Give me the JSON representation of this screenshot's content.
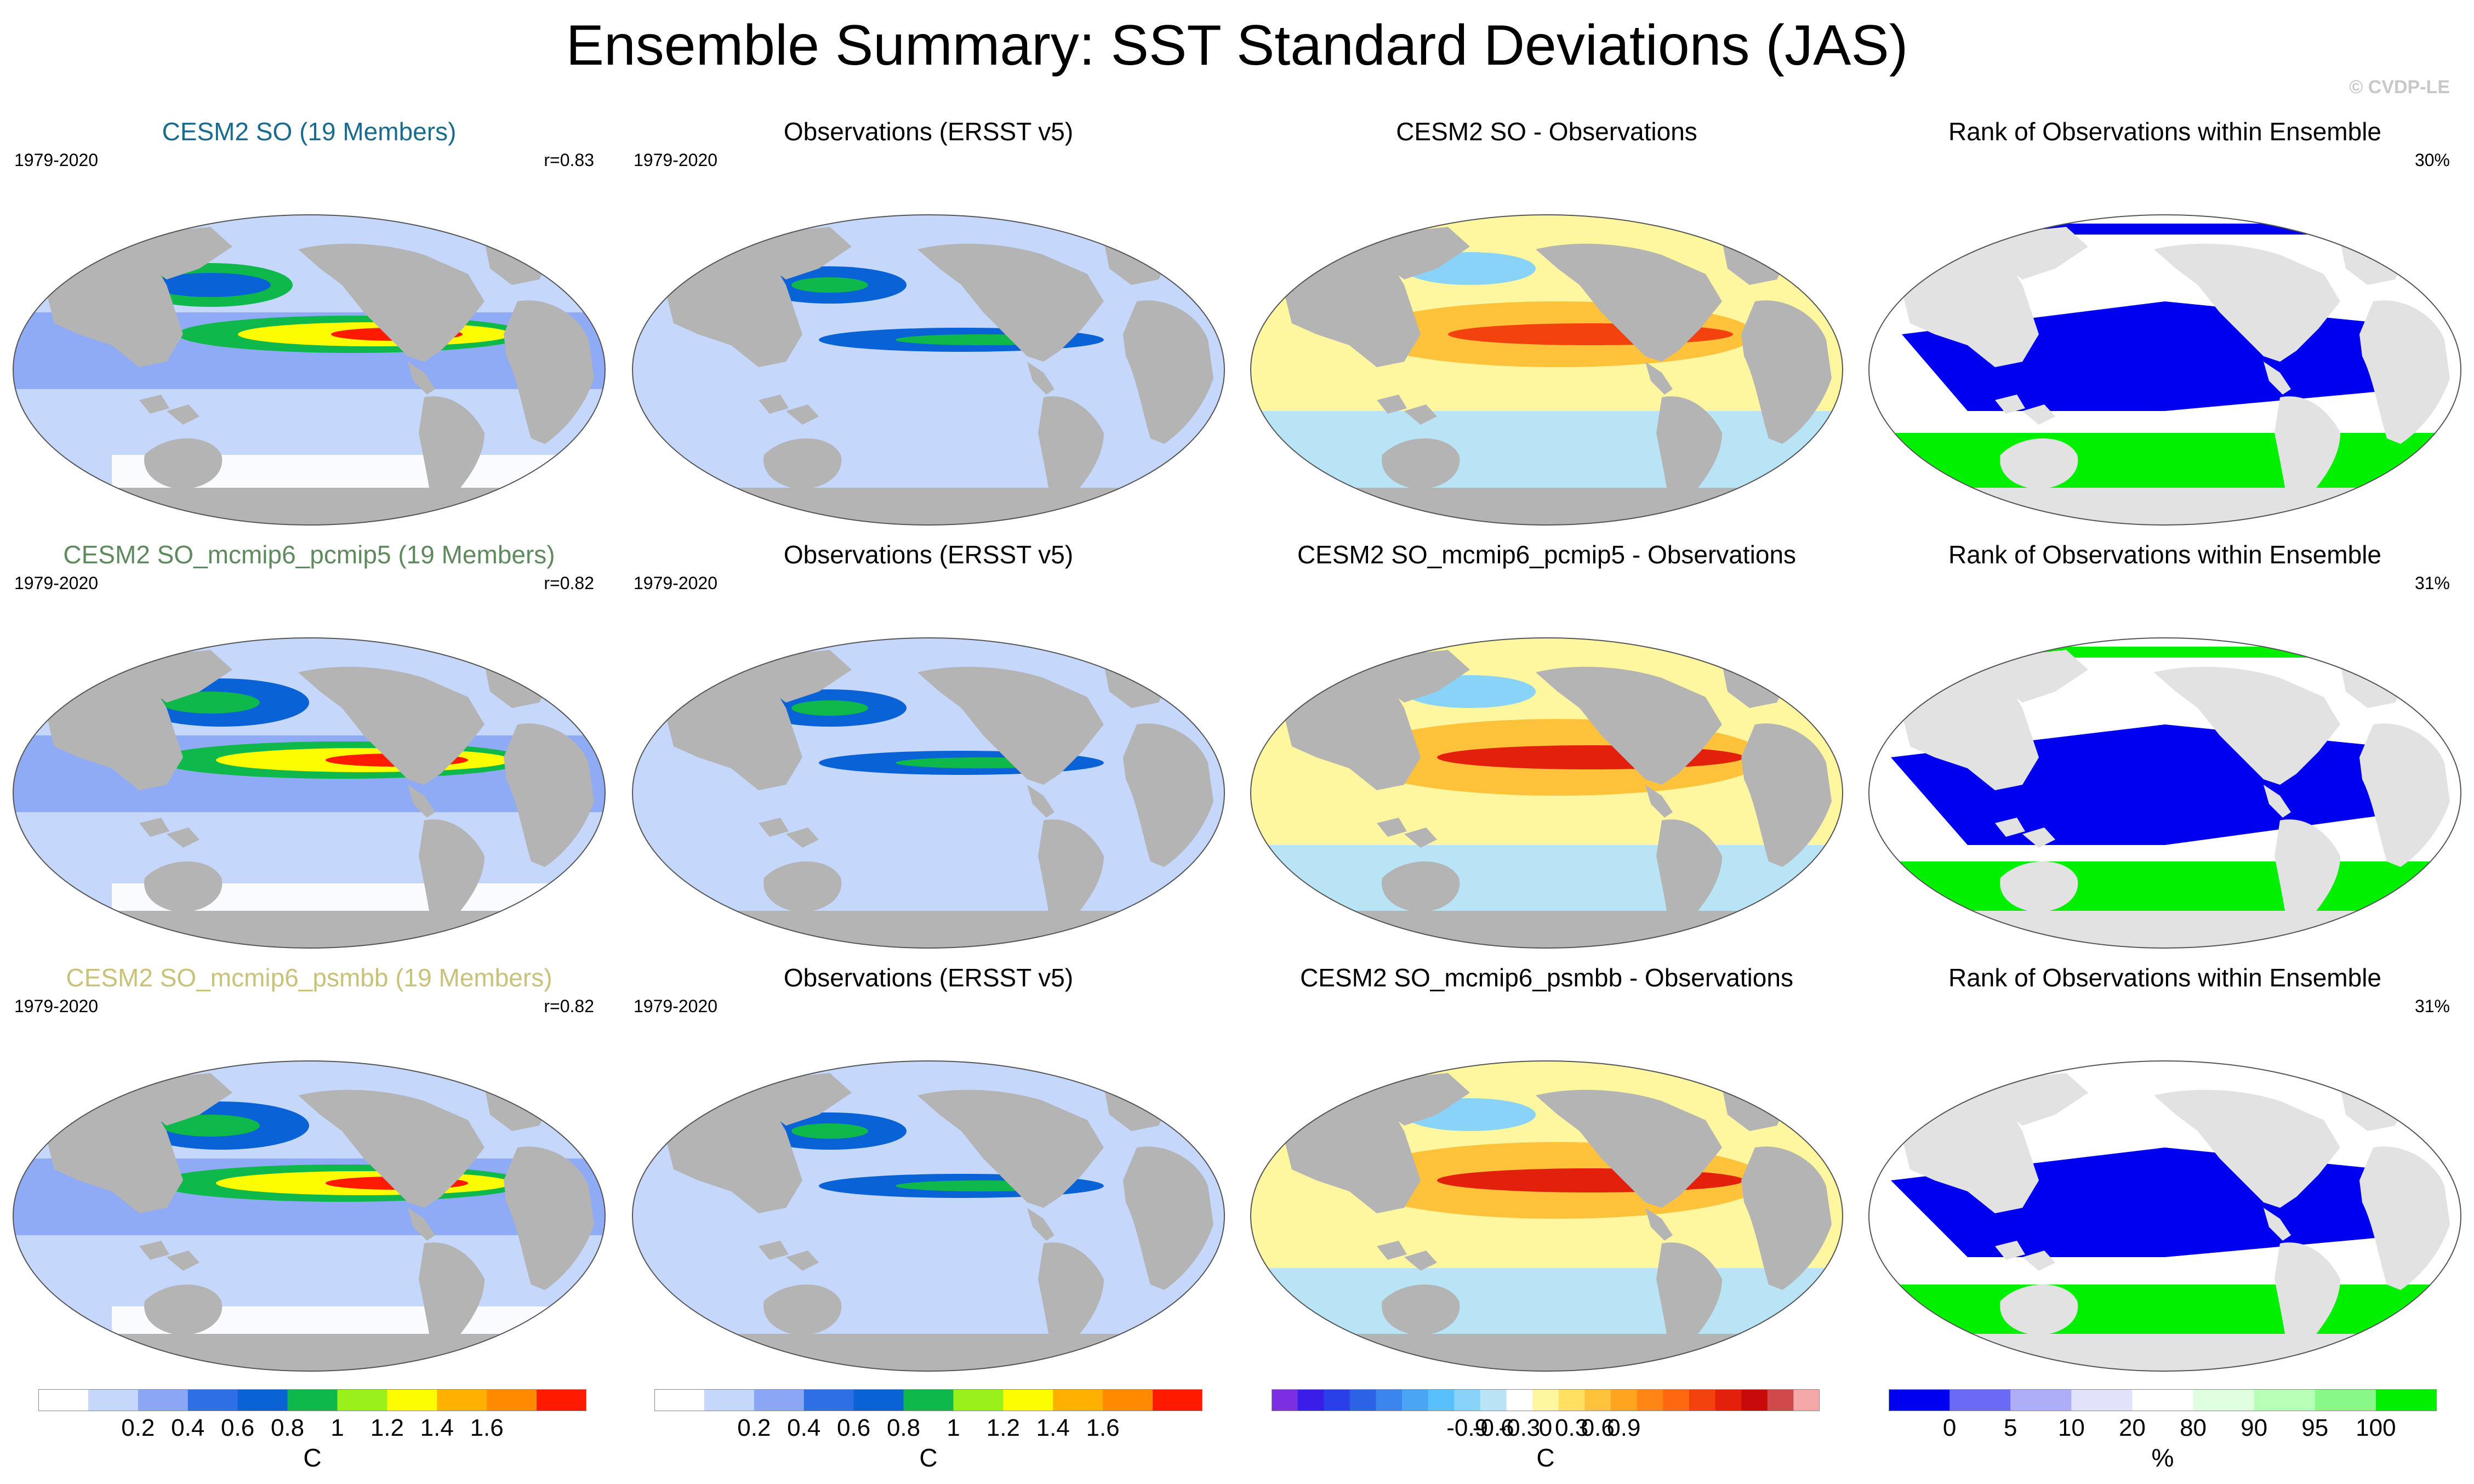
{
  "title": "Ensemble Summary: SST Standard Deviations (JAS)",
  "copyright": "© CVDP-LE",
  "colors": {
    "land": "#b4b4b4",
    "ocean_base": "#c5d7fb",
    "ensemble_title_row1": "#1a6b8e",
    "ensemble_title_row2": "#5e8a5e",
    "ensemble_title_row3": "#c9c27a"
  },
  "rows": [
    {
      "ensemble": {
        "title": "CESM2 SO (19 Members)",
        "years": "1979-2020",
        "corr": "r=0.83"
      },
      "obs": {
        "title": "Observations (ERSST v5)",
        "years": "1979-2020"
      },
      "diff": {
        "title": "CESM2 SO - Observations"
      },
      "rank": {
        "title": "Rank of Observations within Ensemble",
        "pct": "30%"
      }
    },
    {
      "ensemble": {
        "title": "CESM2 SO_mcmip6_pcmip5 (19 Members)",
        "years": "1979-2020",
        "corr": "r=0.82"
      },
      "obs": {
        "title": "Observations (ERSST v5)",
        "years": "1979-2020"
      },
      "diff": {
        "title": "CESM2 SO_mcmip6_pcmip5 - Observations"
      },
      "rank": {
        "title": "Rank of Observations within Ensemble",
        "pct": "31%"
      }
    },
    {
      "ensemble": {
        "title": "CESM2 SO_mcmip6_psmbb (19 Members)",
        "years": "1979-2020",
        "corr": "r=0.82"
      },
      "obs": {
        "title": "Observations (ERSST v5)",
        "years": "1979-2020"
      },
      "diff": {
        "title": "CESM2 SO_mcmip6_psmbb - Observations"
      },
      "rank": {
        "title": "Rank of Observations within Ensemble",
        "pct": "31%"
      }
    }
  ],
  "colorbars": [
    {
      "unit": "C",
      "ticks": [
        "0.2",
        "0.4",
        "0.6",
        "0.8",
        "1",
        "1.2",
        "1.4",
        "1.6"
      ],
      "colors": [
        "#ffffff",
        "#c5d7fb",
        "#8aa6f5",
        "#2f6fe6",
        "#0a63d6",
        "#0fb84a",
        "#9af01a",
        "#fdfd00",
        "#ffb000",
        "#ff8a00",
        "#ff1a00"
      ]
    },
    {
      "unit": "C",
      "ticks": [
        "0.2",
        "0.4",
        "0.6",
        "0.8",
        "1",
        "1.2",
        "1.4",
        "1.6"
      ],
      "colors": [
        "#ffffff",
        "#c5d7fb",
        "#8aa6f5",
        "#2f6fe6",
        "#0a63d6",
        "#0fb84a",
        "#9af01a",
        "#fdfd00",
        "#ffb000",
        "#ff8a00",
        "#ff1a00"
      ]
    },
    {
      "unit": "C",
      "ticks": [
        "-0.9",
        "-0.6",
        "-0.3",
        "0",
        "0.3",
        "0.6",
        "0.9"
      ],
      "colors": [
        "#7b2fe0",
        "#3a1ee8",
        "#2a3fe8",
        "#2c63e6",
        "#3a86ee",
        "#4aa6f4",
        "#58c0fa",
        "#8ad3f8",
        "#b8e4f6",
        "#ffffff",
        "#fff6a0",
        "#ffe060",
        "#ffc23a",
        "#ffa41e",
        "#ff8614",
        "#ff6810",
        "#f4420e",
        "#e2200c",
        "#c80a0a",
        "#d04a4a",
        "#f4a8a8"
      ]
    },
    {
      "unit": "%",
      "ticks": [
        "0",
        "5",
        "10",
        "20",
        "80",
        "90",
        "95",
        "100"
      ],
      "colors": [
        "#0000f0",
        "#6a6af6",
        "#aeaef8",
        "#e2e2fb",
        "#ffffff",
        "#e0ffe0",
        "#b8ffb8",
        "#88f888",
        "#00f000"
      ]
    }
  ]
}
